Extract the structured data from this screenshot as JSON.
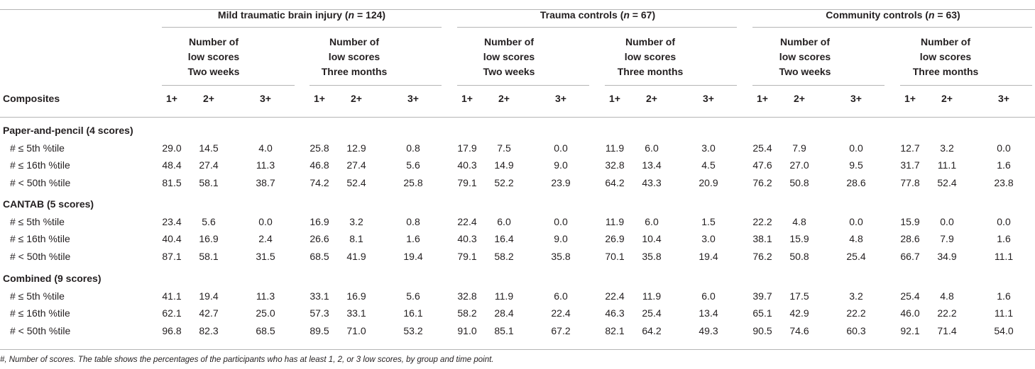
{
  "table": {
    "corner_header": "Composites",
    "groups": [
      {
        "name": "Mild traumatic brain injury (",
        "n_label": "n",
        "n_value": " = 124)",
        "subgroups": [
          {
            "l1": "Number of",
            "l2": "low scores",
            "l3": "Two weeks"
          },
          {
            "l1": "Number of",
            "l2": "low scores",
            "l3": "Three months"
          }
        ]
      },
      {
        "name": "Trauma controls (",
        "n_label": "n",
        "n_value": " = 67)",
        "subgroups": [
          {
            "l1": "Number of",
            "l2": "low scores",
            "l3": "Two weeks"
          },
          {
            "l1": "Number of",
            "l2": "low scores",
            "l3": "Three months"
          }
        ]
      },
      {
        "name": "Community controls (",
        "n_label": "n",
        "n_value": " = 63)",
        "subgroups": [
          {
            "l1": "Number of",
            "l2": "low scores",
            "l3": "Two weeks"
          },
          {
            "l1": "Number of",
            "l2": "low scores",
            "l3": "Three months"
          }
        ]
      }
    ],
    "count_headers": [
      "1+",
      "2+",
      "3+"
    ],
    "sections": [
      {
        "title": "Paper-and-pencil (4 scores)",
        "rows": [
          {
            "label": "# ≤ 5th %tile",
            "values": [
              "29.0",
              "14.5",
              "4.0",
              "25.8",
              "12.9",
              "0.8",
              "17.9",
              "7.5",
              "0.0",
              "11.9",
              "6.0",
              "3.0",
              "25.4",
              "7.9",
              "0.0",
              "12.7",
              "3.2",
              "0.0"
            ]
          },
          {
            "label": "# ≤ 16th %tile",
            "values": [
              "48.4",
              "27.4",
              "11.3",
              "46.8",
              "27.4",
              "5.6",
              "40.3",
              "14.9",
              "9.0",
              "32.8",
              "13.4",
              "4.5",
              "47.6",
              "27.0",
              "9.5",
              "31.7",
              "11.1",
              "1.6"
            ]
          },
          {
            "label": "# < 50th %tile",
            "values": [
              "81.5",
              "58.1",
              "38.7",
              "74.2",
              "52.4",
              "25.8",
              "79.1",
              "52.2",
              "23.9",
              "64.2",
              "43.3",
              "20.9",
              "76.2",
              "50.8",
              "28.6",
              "77.8",
              "52.4",
              "23.8"
            ]
          }
        ]
      },
      {
        "title": "CANTAB (5 scores)",
        "rows": [
          {
            "label": "# ≤ 5th %tile",
            "values": [
              "23.4",
              "5.6",
              "0.0",
              "16.9",
              "3.2",
              "0.8",
              "22.4",
              "6.0",
              "0.0",
              "11.9",
              "6.0",
              "1.5",
              "22.2",
              "4.8",
              "0.0",
              "15.9",
              "0.0",
              "0.0"
            ]
          },
          {
            "label": "# ≤ 16th %tile",
            "values": [
              "40.4",
              "16.9",
              "2.4",
              "26.6",
              "8.1",
              "1.6",
              "40.3",
              "16.4",
              "9.0",
              "26.9",
              "10.4",
              "3.0",
              "38.1",
              "15.9",
              "4.8",
              "28.6",
              "7.9",
              "1.6"
            ]
          },
          {
            "label": "# < 50th %tile",
            "values": [
              "87.1",
              "58.1",
              "31.5",
              "68.5",
              "41.9",
              "19.4",
              "79.1",
              "58.2",
              "35.8",
              "70.1",
              "35.8",
              "19.4",
              "76.2",
              "50.8",
              "25.4",
              "66.7",
              "34.9",
              "11.1"
            ]
          }
        ]
      },
      {
        "title": "Combined (9 scores)",
        "rows": [
          {
            "label": "# ≤ 5th %tile",
            "values": [
              "41.1",
              "19.4",
              "11.3",
              "33.1",
              "16.9",
              "5.6",
              "32.8",
              "11.9",
              "6.0",
              "22.4",
              "11.9",
              "6.0",
              "39.7",
              "17.5",
              "3.2",
              "25.4",
              "4.8",
              "1.6"
            ]
          },
          {
            "label": "# ≤ 16th %tile",
            "values": [
              "62.1",
              "42.7",
              "25.0",
              "57.3",
              "33.1",
              "16.1",
              "58.2",
              "28.4",
              "22.4",
              "46.3",
              "25.4",
              "13.4",
              "65.1",
              "42.9",
              "22.2",
              "46.0",
              "22.2",
              "11.1"
            ]
          },
          {
            "label": "# < 50th %tile",
            "values": [
              "96.8",
              "82.3",
              "68.5",
              "89.5",
              "71.0",
              "53.2",
              "91.0",
              "85.1",
              "67.2",
              "82.1",
              "64.2",
              "49.3",
              "90.5",
              "74.6",
              "60.3",
              "92.1",
              "71.4",
              "54.0"
            ]
          }
        ]
      }
    ],
    "footnote": "#, Number of scores. The table shows the percentages of the participants who has at least 1, 2, or 3 low scores, by group and time point."
  }
}
